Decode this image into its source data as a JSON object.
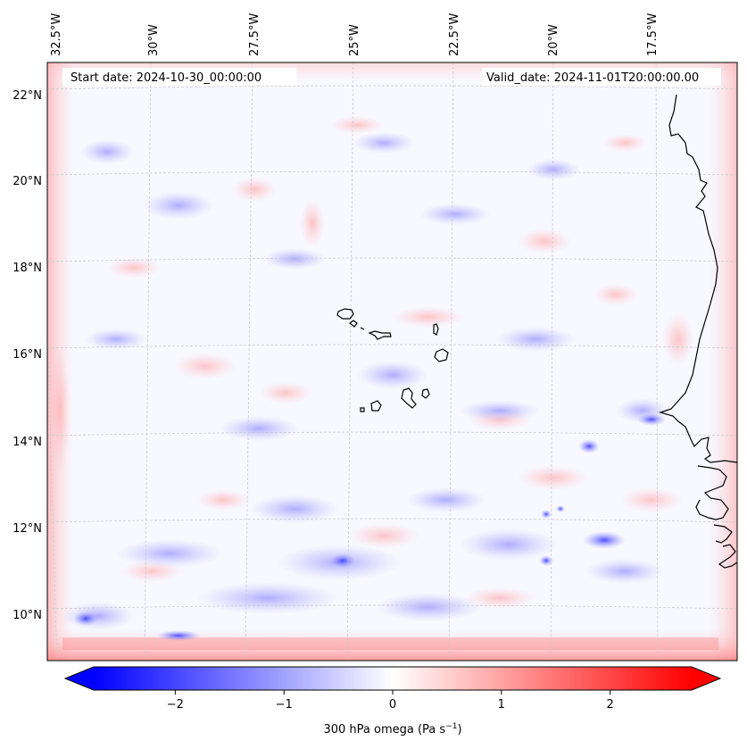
{
  "map": {
    "start_date": "Start date: 2024-10-30_00:00:00",
    "valid_date": "Valid_date: 2024-11-01T20:00:00.00",
    "lon_labels": [
      "32.5°W",
      "30°W",
      "27.5°W",
      "25°W",
      "22.5°W",
      "20°W",
      "17.5°W"
    ],
    "lat_labels": [
      "22°N",
      "20°N",
      "18°N",
      "16°N",
      "14°N",
      "12°N",
      "10°N"
    ],
    "colorbar": {
      "label": "300 hPa omega (Pa s",
      "label_sup": "−1",
      "label_end": ")",
      "ticks": [
        "−2",
        "−1",
        "0",
        "1",
        "2"
      ],
      "min": -2.75,
      "max": 2.75,
      "tick_values": [
        -2,
        -1,
        0,
        1,
        2
      ],
      "colors": {
        "negative": "#0000ff",
        "zero": "#ffffff",
        "positive": "#ff0000"
      }
    },
    "coastline_color": "#000000",
    "gridline_color": "#bbbbbb"
  }
}
